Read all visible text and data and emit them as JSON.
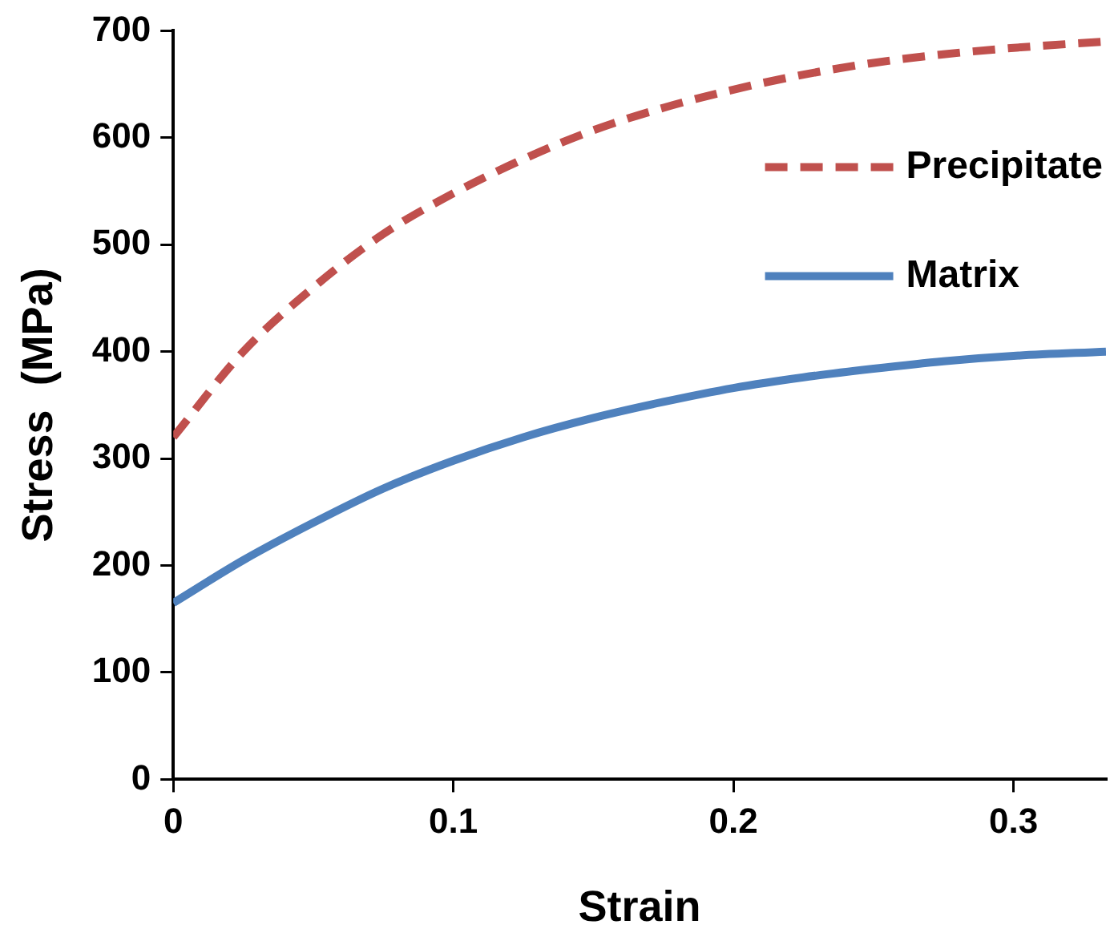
{
  "chart_data": {
    "type": "line",
    "xlabel": "Strain",
    "ylabel": "Stress  (MPa)",
    "x": [
      0,
      0.025,
      0.05,
      0.075,
      0.1,
      0.125,
      0.15,
      0.175,
      0.2,
      0.225,
      0.25,
      0.275,
      0.3,
      0.333
    ],
    "series": [
      {
        "name": "Precipitate",
        "color": "#c0504d",
        "line_style": "dashed",
        "values": [
          320,
          400,
          460,
          510,
          548,
          580,
          607,
          628,
          645,
          659,
          670,
          678,
          684,
          690
        ]
      },
      {
        "name": "Matrix",
        "color": "#4f81bd",
        "line_style": "solid",
        "values": [
          165,
          205,
          240,
          272,
          298,
          320,
          338,
          353,
          366,
          376,
          384,
          391,
          396,
          400
        ]
      }
    ],
    "xlim": [
      0,
      0.333
    ],
    "xticks": [
      0,
      0.1,
      0.2,
      0.3
    ],
    "ylim": [
      0,
      700
    ],
    "yticks": [
      0,
      100,
      200,
      300,
      400,
      500,
      600,
      700
    ],
    "grid": false,
    "legend": "top right",
    "marker": "none"
  }
}
